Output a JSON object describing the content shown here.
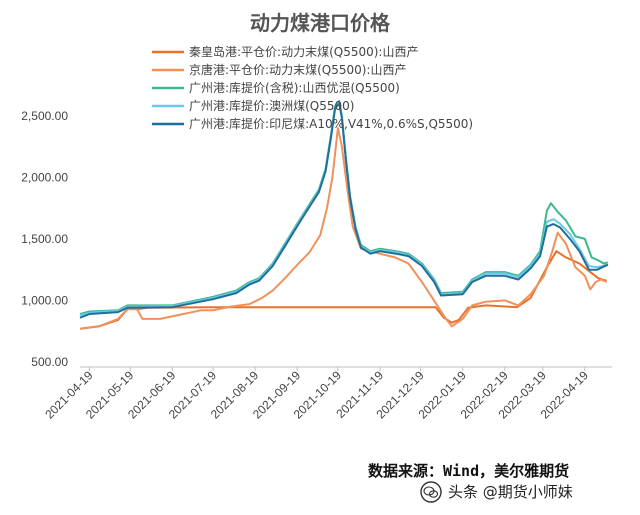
{
  "chart_data": {
    "type": "line",
    "title": "动力煤港口价格",
    "ylim": [
      500,
      2750
    ],
    "yticks": [
      500,
      1000,
      1500,
      2000,
      2500
    ],
    "ytick_labels": [
      "500.00",
      "1,000.00",
      "1,500.00",
      "2,000.00",
      "2,500.00"
    ],
    "xlim": [
      "2021-04-12",
      "2022-05-09"
    ],
    "xticks": [
      "2021-04-19",
      "2021-05-19",
      "2021-06-19",
      "2021-07-19",
      "2021-08-19",
      "2021-09-19",
      "2021-10-19",
      "2021-11-19",
      "2021-12-19",
      "2022-01-19",
      "2022-02-19",
      "2022-03-19",
      "2022-04-19"
    ],
    "grid": false,
    "legend_position": "top-left",
    "series": [
      {
        "name": "秦皇岛港:平仓价:动力末煤(Q5500):山西产",
        "color": "#e8712e",
        "points": [
          [
            "2021-04-12",
            770
          ],
          [
            "2021-04-26",
            790
          ],
          [
            "2021-05-10",
            840
          ],
          [
            "2021-05-17",
            930
          ],
          [
            "2021-05-24",
            930
          ],
          [
            "2021-06-01",
            940
          ],
          [
            "2021-07-15",
            945
          ],
          [
            "2021-09-15",
            945
          ],
          [
            "2021-11-15",
            945
          ],
          [
            "2021-12-30",
            945
          ],
          [
            "2022-01-05",
            860
          ],
          [
            "2022-01-11",
            820
          ],
          [
            "2022-01-16",
            840
          ],
          [
            "2022-01-23",
            940
          ],
          [
            "2022-02-05",
            960
          ],
          [
            "2022-02-28",
            945
          ],
          [
            "2022-03-10",
            1020
          ],
          [
            "2022-03-22",
            1270
          ],
          [
            "2022-03-29",
            1400
          ],
          [
            "2022-04-05",
            1350
          ],
          [
            "2022-04-15",
            1300
          ],
          [
            "2022-04-22",
            1240
          ],
          [
            "2022-04-29",
            1180
          ],
          [
            "2022-05-05",
            1160
          ]
        ]
      },
      {
        "name": "京唐港:平仓价:动力末煤(Q5500):山西产",
        "color": "#f0915a",
        "points": [
          [
            "2021-04-12",
            770
          ],
          [
            "2021-04-26",
            790
          ],
          [
            "2021-05-10",
            850
          ],
          [
            "2021-05-17",
            930
          ],
          [
            "2021-05-24",
            930
          ],
          [
            "2021-05-28",
            850
          ],
          [
            "2021-06-10",
            850
          ],
          [
            "2021-06-25",
            885
          ],
          [
            "2021-07-10",
            920
          ],
          [
            "2021-07-19",
            920
          ],
          [
            "2021-08-01",
            950
          ],
          [
            "2021-08-15",
            970
          ],
          [
            "2021-08-24",
            1020
          ],
          [
            "2021-09-01",
            1080
          ],
          [
            "2021-09-10",
            1180
          ],
          [
            "2021-09-20",
            1300
          ],
          [
            "2021-09-28",
            1390
          ],
          [
            "2021-10-06",
            1530
          ],
          [
            "2021-10-11",
            1750
          ],
          [
            "2021-10-15",
            2000
          ],
          [
            "2021-10-19",
            2400
          ],
          [
            "2021-10-22",
            2250
          ],
          [
            "2021-10-26",
            1900
          ],
          [
            "2021-10-30",
            1600
          ],
          [
            "2021-11-05",
            1420
          ],
          [
            "2021-11-19",
            1380
          ],
          [
            "2021-11-30",
            1350
          ],
          [
            "2021-12-10",
            1300
          ],
          [
            "2021-12-20",
            1150
          ],
          [
            "2021-12-30",
            980
          ],
          [
            "2022-01-06",
            860
          ],
          [
            "2022-01-11",
            790
          ],
          [
            "2022-01-19",
            850
          ],
          [
            "2022-01-26",
            960
          ],
          [
            "2022-02-05",
            990
          ],
          [
            "2022-02-19",
            1000
          ],
          [
            "2022-03-01",
            960
          ],
          [
            "2022-03-10",
            1050
          ],
          [
            "2022-03-20",
            1200
          ],
          [
            "2022-03-26",
            1400
          ],
          [
            "2022-03-30",
            1550
          ],
          [
            "2022-04-05",
            1460
          ],
          [
            "2022-04-12",
            1270
          ],
          [
            "2022-04-19",
            1200
          ],
          [
            "2022-04-23",
            1090
          ],
          [
            "2022-04-27",
            1150
          ],
          [
            "2022-05-01",
            1170
          ],
          [
            "2022-05-05",
            1150
          ]
        ]
      },
      {
        "name": "广州港:库提价(含税):山西优混(Q5500)",
        "color": "#3cb88f",
        "points": [
          [
            "2021-04-12",
            890
          ],
          [
            "2021-04-19",
            910
          ],
          [
            "2021-05-10",
            920
          ],
          [
            "2021-05-17",
            960
          ],
          [
            "2021-06-19",
            960
          ],
          [
            "2021-07-19",
            1030
          ],
          [
            "2021-08-05",
            1080
          ],
          [
            "2021-08-15",
            1150
          ],
          [
            "2021-08-22",
            1180
          ],
          [
            "2021-09-01",
            1300
          ],
          [
            "2021-09-10",
            1460
          ],
          [
            "2021-09-20",
            1640
          ],
          [
            "2021-09-28",
            1780
          ],
          [
            "2021-10-05",
            1900
          ],
          [
            "2021-10-10",
            2070
          ],
          [
            "2021-10-14",
            2350
          ],
          [
            "2021-10-17",
            2580
          ],
          [
            "2021-10-20",
            2620
          ],
          [
            "2021-10-22",
            2500
          ],
          [
            "2021-10-25",
            2150
          ],
          [
            "2021-10-28",
            1850
          ],
          [
            "2021-11-01",
            1600
          ],
          [
            "2021-11-05",
            1450
          ],
          [
            "2021-11-12",
            1400
          ],
          [
            "2021-11-19",
            1420
          ],
          [
            "2021-12-01",
            1400
          ],
          [
            "2021-12-10",
            1380
          ],
          [
            "2021-12-20",
            1300
          ],
          [
            "2021-12-29",
            1170
          ],
          [
            "2022-01-03",
            1060
          ],
          [
            "2022-01-19",
            1070
          ],
          [
            "2022-01-26",
            1170
          ],
          [
            "2022-02-05",
            1230
          ],
          [
            "2022-02-19",
            1230
          ],
          [
            "2022-03-01",
            1200
          ],
          [
            "2022-03-10",
            1290
          ],
          [
            "2022-03-17",
            1400
          ],
          [
            "2022-03-22",
            1730
          ],
          [
            "2022-03-25",
            1790
          ],
          [
            "2022-03-30",
            1720
          ],
          [
            "2022-04-05",
            1650
          ],
          [
            "2022-04-12",
            1520
          ],
          [
            "2022-04-19",
            1500
          ],
          [
            "2022-04-24",
            1350
          ],
          [
            "2022-04-28",
            1330
          ],
          [
            "2022-05-03",
            1300
          ],
          [
            "2022-05-06",
            1310
          ]
        ]
      },
      {
        "name": "广州港:库提价:澳洲煤(Q5500)",
        "color": "#6cc8e8",
        "points": [
          [
            "2021-04-12",
            880
          ],
          [
            "2021-04-19",
            900
          ],
          [
            "2021-05-10",
            915
          ],
          [
            "2021-05-17",
            950
          ],
          [
            "2021-06-19",
            955
          ],
          [
            "2021-07-19",
            1020
          ],
          [
            "2021-08-05",
            1070
          ],
          [
            "2021-08-15",
            1140
          ],
          [
            "2021-08-22",
            1170
          ],
          [
            "2021-09-01",
            1290
          ],
          [
            "2021-09-10",
            1450
          ],
          [
            "2021-09-20",
            1630
          ],
          [
            "2021-09-28",
            1770
          ],
          [
            "2021-10-05",
            1890
          ],
          [
            "2021-10-10",
            2060
          ],
          [
            "2021-10-14",
            2340
          ],
          [
            "2021-10-17",
            2570
          ],
          [
            "2021-10-20",
            2610
          ],
          [
            "2021-10-22",
            2490
          ],
          [
            "2021-10-25",
            2140
          ],
          [
            "2021-10-28",
            1840
          ],
          [
            "2021-11-01",
            1590
          ],
          [
            "2021-11-05",
            1440
          ],
          [
            "2021-11-12",
            1390
          ],
          [
            "2021-11-19",
            1410
          ],
          [
            "2021-12-01",
            1390
          ],
          [
            "2021-12-10",
            1370
          ],
          [
            "2021-12-20",
            1290
          ],
          [
            "2021-12-29",
            1160
          ],
          [
            "2022-01-03",
            1050
          ],
          [
            "2022-01-19",
            1060
          ],
          [
            "2022-01-26",
            1160
          ],
          [
            "2022-02-05",
            1220
          ],
          [
            "2022-02-19",
            1220
          ],
          [
            "2022-03-01",
            1190
          ],
          [
            "2022-03-10",
            1280
          ],
          [
            "2022-03-17",
            1380
          ],
          [
            "2022-03-22",
            1640
          ],
          [
            "2022-03-27",
            1660
          ],
          [
            "2022-04-01",
            1620
          ],
          [
            "2022-04-08",
            1540
          ],
          [
            "2022-04-15",
            1420
          ],
          [
            "2022-04-22",
            1280
          ],
          [
            "2022-04-28",
            1270
          ],
          [
            "2022-05-06",
            1290
          ]
        ]
      },
      {
        "name": "广州港:库提价:印尼煤:A10%,V41%,0.6%S,Q5500)",
        "color": "#1f6f9a",
        "points": [
          [
            "2021-04-12",
            860
          ],
          [
            "2021-04-19",
            890
          ],
          [
            "2021-05-10",
            905
          ],
          [
            "2021-05-17",
            940
          ],
          [
            "2021-06-19",
            945
          ],
          [
            "2021-07-19",
            1010
          ],
          [
            "2021-08-05",
            1060
          ],
          [
            "2021-08-15",
            1130
          ],
          [
            "2021-08-22",
            1160
          ],
          [
            "2021-09-01",
            1280
          ],
          [
            "2021-09-10",
            1440
          ],
          [
            "2021-09-20",
            1620
          ],
          [
            "2021-09-28",
            1760
          ],
          [
            "2021-10-05",
            1880
          ],
          [
            "2021-10-10",
            2050
          ],
          [
            "2021-10-14",
            2330
          ],
          [
            "2021-10-17",
            2560
          ],
          [
            "2021-10-20",
            2600
          ],
          [
            "2021-10-22",
            2480
          ],
          [
            "2021-10-25",
            2130
          ],
          [
            "2021-10-28",
            1830
          ],
          [
            "2021-11-01",
            1580
          ],
          [
            "2021-11-05",
            1430
          ],
          [
            "2021-11-12",
            1380
          ],
          [
            "2021-11-19",
            1400
          ],
          [
            "2021-12-01",
            1380
          ],
          [
            "2021-12-10",
            1360
          ],
          [
            "2021-12-20",
            1280
          ],
          [
            "2021-12-29",
            1150
          ],
          [
            "2022-01-03",
            1040
          ],
          [
            "2022-01-19",
            1050
          ],
          [
            "2022-01-26",
            1150
          ],
          [
            "2022-02-05",
            1200
          ],
          [
            "2022-02-19",
            1200
          ],
          [
            "2022-03-01",
            1170
          ],
          [
            "2022-03-10",
            1260
          ],
          [
            "2022-03-17",
            1360
          ],
          [
            "2022-03-22",
            1600
          ],
          [
            "2022-03-27",
            1620
          ],
          [
            "2022-04-01",
            1590
          ],
          [
            "2022-04-08",
            1500
          ],
          [
            "2022-04-15",
            1400
          ],
          [
            "2022-04-22",
            1250
          ],
          [
            "2022-04-28",
            1250
          ],
          [
            "2022-05-06",
            1290
          ]
        ]
      }
    ]
  },
  "footer": {
    "source": "数据来源：Wind，美尔雅期货",
    "watermark": "头条 @期货小师妹"
  }
}
